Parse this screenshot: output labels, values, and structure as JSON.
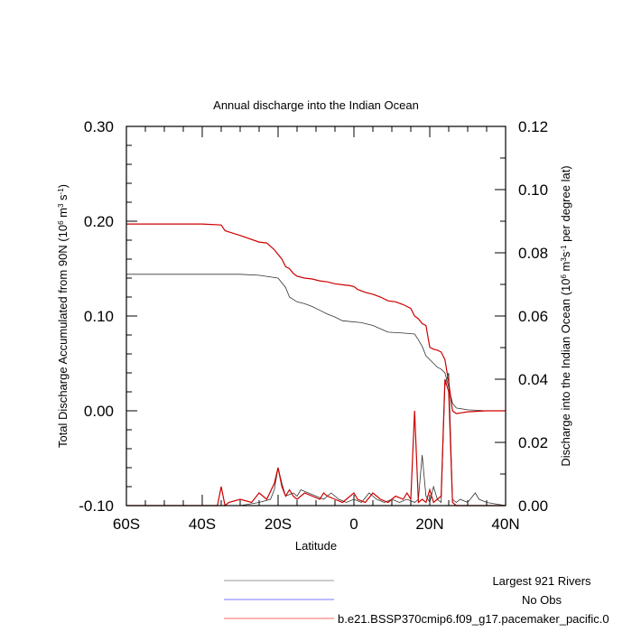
{
  "chart_data": {
    "type": "line",
    "title": "Annual discharge into the Indian Ocean",
    "xlabel": "Latitude",
    "ylabel_left": "Total Discharge Accumulated from 90N (10",
    "ylabel_left_sup1": "6",
    "ylabel_left_mid": " m",
    "ylabel_left_sup2": "3",
    "ylabel_left_mid2": " s",
    "ylabel_left_sup3": "-1",
    "ylabel_left_end": ")",
    "ylabel_right": "Discharge into the Indian Ocean (10",
    "ylabel_right_sup1": "6",
    "ylabel_right_mid": " m",
    "ylabel_right_sup2": "3",
    "ylabel_right_mid2": "s",
    "ylabel_right_sup3": "-1",
    "ylabel_right_end": " per degree lat)",
    "xlim": [
      -60,
      40
    ],
    "ylim_left": [
      -0.1,
      0.3
    ],
    "ylim_right": [
      0,
      0.12
    ],
    "x_ticks": [
      {
        "value": -60,
        "label": "60S"
      },
      {
        "value": -40,
        "label": "40S"
      },
      {
        "value": -20,
        "label": "20S"
      },
      {
        "value": 0,
        "label": "0"
      },
      {
        "value": 20,
        "label": "20N"
      },
      {
        "value": 40,
        "label": "40N"
      }
    ],
    "y_ticks_left": [
      {
        "value": 0.3,
        "label": "0.30"
      },
      {
        "value": 0.2,
        "label": "0.20"
      },
      {
        "value": 0.1,
        "label": "0.10"
      },
      {
        "value": 0.0,
        "label": "0.00"
      },
      {
        "value": -0.1,
        "label": "-0.10"
      }
    ],
    "y_ticks_right": [
      {
        "value": 0.12,
        "label": "0.12"
      },
      {
        "value": 0.1,
        "label": "0.10"
      },
      {
        "value": 0.08,
        "label": "0.08"
      },
      {
        "value": 0.06,
        "label": "0.06"
      },
      {
        "value": 0.04,
        "label": "0.04"
      },
      {
        "value": 0.02,
        "label": "0.02"
      },
      {
        "value": 0.0,
        "label": "0.00"
      }
    ],
    "series": [
      {
        "name": "Largest 921 Rivers",
        "color": "#333333",
        "axis": "left",
        "x": [
          -60,
          -35,
          -30,
          -25,
          -20,
          -18,
          -17,
          -15,
          -13,
          -11,
          -9,
          -7,
          -5,
          -3,
          2,
          5,
          9,
          13,
          16,
          17,
          18,
          19,
          21,
          22,
          23,
          24,
          25,
          26,
          27,
          30,
          35,
          40
        ],
        "y": [
          0.144,
          0.144,
          0.144,
          0.143,
          0.14,
          0.13,
          0.12,
          0.115,
          0.113,
          0.11,
          0.106,
          0.102,
          0.099,
          0.095,
          0.093,
          0.09,
          0.083,
          0.082,
          0.081,
          0.075,
          0.068,
          0.058,
          0.05,
          0.046,
          0.044,
          0.04,
          0.025,
          0.008,
          0.003,
          0.001,
          0.0,
          0.0
        ]
      },
      {
        "name": "No Obs",
        "color": "#0000ff",
        "axis": "left",
        "x": [],
        "y": []
      },
      {
        "name": "b.e21.BSSP370cmip6.f09_g17.pacemaker_pacific.0",
        "color": "#cc0000",
        "axis": "left",
        "x": [
          -60,
          -40,
          -35,
          -34,
          -30,
          -25,
          -23,
          -21,
          -19,
          -18,
          -17,
          -16,
          -15,
          -13,
          -11,
          -9,
          -7,
          -5,
          -3,
          -1,
          0,
          1,
          3,
          5,
          7,
          9,
          11,
          13,
          15,
          16,
          17,
          18,
          19,
          20,
          21,
          22,
          23,
          24,
          25,
          26,
          27,
          30,
          35,
          40
        ],
        "y": [
          0.197,
          0.197,
          0.196,
          0.19,
          0.185,
          0.178,
          0.177,
          0.17,
          0.16,
          0.152,
          0.15,
          0.145,
          0.142,
          0.14,
          0.139,
          0.137,
          0.136,
          0.134,
          0.133,
          0.132,
          0.131,
          0.128,
          0.125,
          0.123,
          0.12,
          0.116,
          0.115,
          0.112,
          0.108,
          0.1,
          0.097,
          0.092,
          0.09,
          0.067,
          0.065,
          0.064,
          0.062,
          0.054,
          0.03,
          0.0,
          -0.003,
          -0.001,
          0.0,
          0.0
        ]
      },
      {
        "name": "Largest 921 Rivers (per degree)",
        "color": "#333333",
        "axis": "right",
        "x": [
          -60,
          -30,
          -25,
          -22,
          -21,
          -20,
          -19,
          -18,
          -16,
          -15,
          -14,
          -12,
          -10,
          -8,
          -6,
          -4,
          -2,
          0,
          2,
          4,
          6,
          8,
          10,
          12,
          14,
          16,
          17,
          18,
          19,
          20,
          21,
          22,
          23,
          24,
          25,
          26,
          27,
          28,
          30,
          32,
          33,
          35,
          40
        ],
        "y": [
          0,
          0,
          0.001,
          0.002,
          0.005,
          0.012,
          0.007,
          0.003,
          0.004,
          0.003,
          0.005,
          0.004,
          0.003,
          0.002,
          0.004,
          0.002,
          0.001,
          0.002,
          0.001,
          0.004,
          0.002,
          0.001,
          0.002,
          0.001,
          0.002,
          0.001,
          0.002,
          0.016,
          0.003,
          0.001,
          0.006,
          0.002,
          0.001,
          0.038,
          0.042,
          0.002,
          0.001,
          0.002,
          0.001,
          0.004,
          0.002,
          0.001,
          0
        ]
      },
      {
        "name": "b.e21.BSSP370cmip6.f09_g17.pacemaker_pacific.0 (per degree)",
        "color": "#cc0000",
        "axis": "right",
        "x": [
          -60,
          -36,
          -35,
          -34,
          -33,
          -30,
          -27,
          -25,
          -23,
          -21,
          -20,
          -19,
          -18,
          -17,
          -16,
          -15,
          -13,
          -11,
          -9,
          -8,
          -7,
          -5,
          -3,
          -1,
          0,
          1,
          3,
          5,
          7,
          9,
          11,
          13,
          14,
          15,
          16,
          17,
          18,
          19,
          20,
          21,
          22,
          23,
          24,
          25,
          26,
          27,
          30,
          35,
          40
        ],
        "y": [
          0,
          0,
          0.006,
          0,
          0.001,
          0.002,
          0.001,
          0.004,
          0.002,
          0.007,
          0.012,
          0.006,
          0.003,
          0.005,
          0.003,
          0.002,
          0.004,
          0.003,
          0.002,
          0.004,
          0.003,
          0.002,
          0.001,
          0.003,
          0.004,
          0.002,
          0.001,
          0.004,
          0.002,
          0.001,
          0.003,
          0.002,
          0.004,
          0.002,
          0.03,
          0.001,
          0.002,
          0.001,
          0.005,
          0.001,
          0.002,
          0.003,
          0.04,
          0.036,
          0.001,
          0,
          0,
          0,
          0
        ]
      }
    ],
    "legend_placement": "bottom",
    "legend": [
      {
        "name": "Largest 921 Rivers",
        "color": "#999999"
      },
      {
        "name": "No Obs",
        "color": "#7777ff"
      },
      {
        "name": "b.e21.BSSP370cmip6.f09_g17.pacemaker_pacific.0",
        "color": "#ff6666"
      }
    ]
  }
}
